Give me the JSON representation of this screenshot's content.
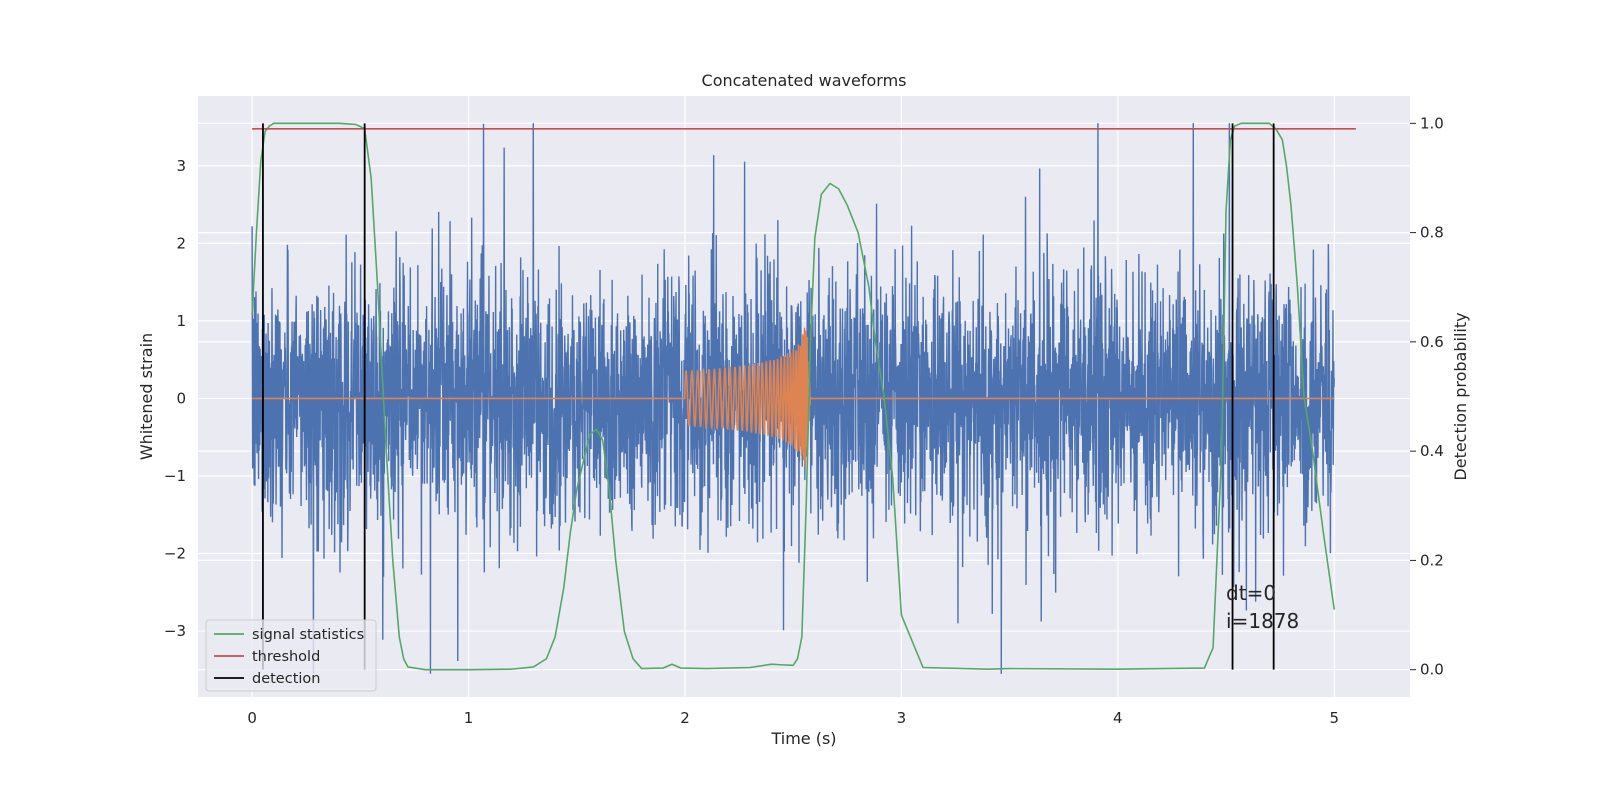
{
  "chart_data": {
    "type": "line",
    "title": "Concatenated waveforms",
    "xlabel": "Time (s)",
    "ylabel_left": "Whitened strain",
    "ylabel_right": "Detection probability",
    "xlim": [
      -0.25,
      5.35
    ],
    "ylim_left": [
      -3.85,
      3.9
    ],
    "ylim_right": [
      -0.05,
      1.05
    ],
    "xticks": [
      0,
      1,
      2,
      3,
      4,
      5
    ],
    "yticks_left": [
      -3,
      -2,
      -1,
      0,
      1,
      2,
      3
    ],
    "yticks_right": [
      0.0,
      0.2,
      0.4,
      0.6,
      0.8,
      1.0
    ],
    "xtick_labels": [
      "0",
      "1",
      "2",
      "3",
      "4",
      "5"
    ],
    "ytick_labels_left": [
      "−3",
      "−2",
      "−1",
      "0",
      "1",
      "2",
      "3"
    ],
    "ytick_labels_right": [
      "0.0",
      "0.2",
      "0.4",
      "0.6",
      "0.8",
      "1.0"
    ],
    "grid": true,
    "legend_position": "lower-left",
    "background": "#eaeaf2",
    "series": [
      {
        "key": "noise",
        "axis": "left",
        "color": "#4c72b0",
        "kind": "noise",
        "x_range": [
          0.0,
          5.0
        ],
        "amplitude_std": 0.8,
        "y_min": -3.55,
        "y_max": 3.55
      },
      {
        "key": "chirp",
        "axis": "left",
        "color": "#dd8452",
        "kind": "chirp",
        "x_range": [
          0.0,
          5.0
        ],
        "start": 2.0,
        "merger": 2.56,
        "peak_amplitude": 1.05
      },
      {
        "key": "stat",
        "name": "signal statistics",
        "axis": "right",
        "color": "#55a868",
        "x": [
          0.0,
          0.02,
          0.04,
          0.06,
          0.08,
          0.1,
          0.15,
          0.2,
          0.3,
          0.4,
          0.48,
          0.52,
          0.55,
          0.58,
          0.62,
          0.65,
          0.68,
          0.7,
          0.72,
          0.8,
          1.0,
          1.2,
          1.3,
          1.36,
          1.4,
          1.44,
          1.47,
          1.5,
          1.53,
          1.56,
          1.59,
          1.62,
          1.65,
          1.68,
          1.72,
          1.76,
          1.8,
          1.9,
          1.94,
          1.98,
          2.1,
          2.3,
          2.4,
          2.44,
          2.5,
          2.52,
          2.54,
          2.56,
          2.58,
          2.6,
          2.63,
          2.67,
          2.71,
          2.75,
          2.8,
          2.85,
          2.88,
          2.92,
          2.96,
          3.0,
          3.1,
          3.4,
          3.5,
          4.0,
          4.4,
          4.44,
          4.48,
          4.5,
          4.52,
          4.54,
          4.57,
          4.6,
          4.7,
          4.73,
          4.76,
          4.78,
          4.8,
          4.83,
          4.86,
          4.9,
          4.95,
          5.0
        ],
        "values": [
          0.65,
          0.8,
          0.93,
          0.985,
          0.995,
          1.0,
          1.0,
          1.0,
          1.0,
          1.0,
          0.998,
          0.99,
          0.9,
          0.7,
          0.4,
          0.2,
          0.06,
          0.02,
          0.005,
          0.0,
          0.0,
          0.001,
          0.005,
          0.02,
          0.06,
          0.15,
          0.25,
          0.33,
          0.38,
          0.43,
          0.44,
          0.42,
          0.33,
          0.2,
          0.07,
          0.02,
          0.002,
          0.003,
          0.01,
          0.003,
          0.002,
          0.004,
          0.01,
          0.009,
          0.008,
          0.02,
          0.06,
          0.3,
          0.6,
          0.79,
          0.87,
          0.89,
          0.88,
          0.85,
          0.8,
          0.7,
          0.6,
          0.5,
          0.35,
          0.1,
          0.004,
          0.001,
          0.002,
          0.001,
          0.003,
          0.04,
          0.4,
          0.84,
          0.97,
          0.995,
          1.0,
          1.0,
          1.0,
          0.99,
          0.97,
          0.92,
          0.85,
          0.7,
          0.5,
          0.4,
          0.25,
          0.11
        ]
      },
      {
        "key": "threshold",
        "name": "threshold",
        "axis": "right",
        "color": "#c44e52",
        "x": [
          0.0,
          5.1
        ],
        "values": [
          0.99,
          0.99
        ]
      }
    ],
    "detections": {
      "name": "detection",
      "color": "#000000",
      "x": [
        0.05,
        0.52,
        4.53,
        4.72
      ]
    },
    "annotation": {
      "lines": [
        "dt=0",
        "i=1878"
      ],
      "x": 4.5,
      "y": -2.6
    },
    "legend": [
      "signal statistics",
      "threshold",
      "detection"
    ]
  }
}
